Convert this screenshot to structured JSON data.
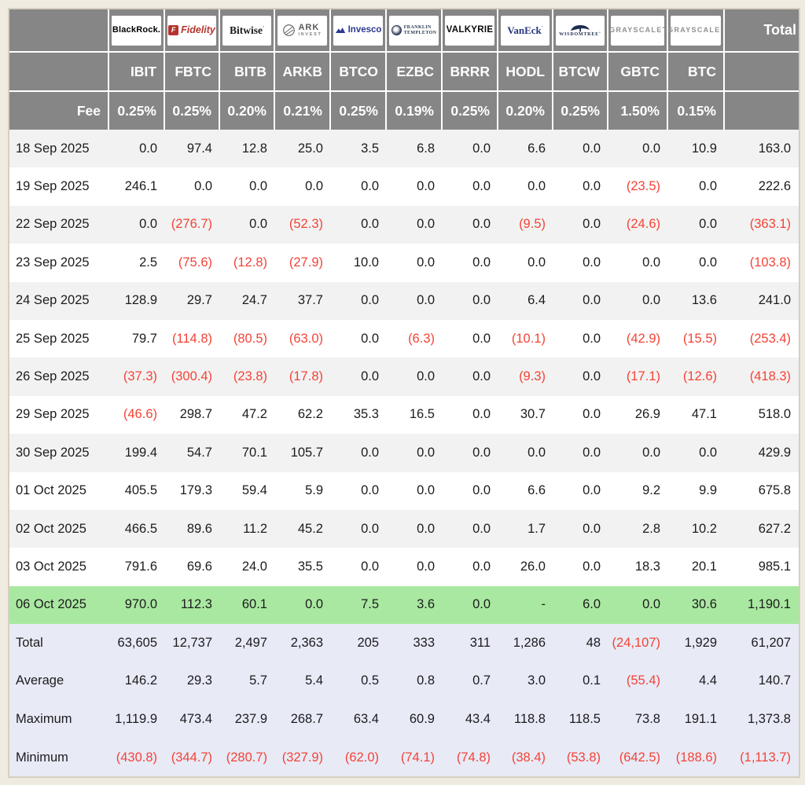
{
  "colors": {
    "page_bg": "#f0ebe1",
    "table_border": "#d6cfc0",
    "header_bg": "#868686",
    "header_text": "#ffffff",
    "row_stripe": "#f2f2f2",
    "row_white": "#ffffff",
    "highlight_green": "#a9e8a0",
    "summary_bg": "#e8eaf6",
    "negative_red": "#f44336",
    "text": "#1c1c1e"
  },
  "chart_data": {
    "type": "table",
    "fee_label": "Fee",
    "total_label": "Total",
    "providers": [
      {
        "style": "blackrock",
        "words": [
          "BlackRock"
        ]
      },
      {
        "style": "fidelity",
        "words": [
          "Fidelity"
        ]
      },
      {
        "style": "bitwise",
        "words": [
          "Bitwise"
        ]
      },
      {
        "style": "ark",
        "words": [
          "ARK",
          "INVEST"
        ]
      },
      {
        "style": "invesco",
        "words": [
          "Invesco"
        ]
      },
      {
        "style": "franklin",
        "words": [
          "FRANKLIN",
          "TEMPLETON"
        ]
      },
      {
        "style": "valkyrie",
        "words": [
          "VALKYRIE"
        ]
      },
      {
        "style": "vaneck",
        "words": [
          "VanEck"
        ]
      },
      {
        "style": "wisdomtree",
        "words": [
          "WISDOMTREE"
        ]
      },
      {
        "style": "grayscale",
        "words": [
          "GRAYSCALE"
        ]
      },
      {
        "style": "grayscale",
        "words": [
          "GRAYSCALE"
        ]
      }
    ],
    "tickers": [
      "IBIT",
      "FBTC",
      "BITB",
      "ARKB",
      "BTCO",
      "EZBC",
      "BRRR",
      "HODL",
      "BTCW",
      "GBTC",
      "BTC"
    ],
    "fees": [
      "0.25%",
      "0.25%",
      "0.20%",
      "0.21%",
      "0.25%",
      "0.19%",
      "0.25%",
      "0.20%",
      "0.25%",
      "1.50%",
      "0.15%"
    ],
    "rows": [
      {
        "date": "18 Sep 2025",
        "values": [
          "0.0",
          "97.4",
          "12.8",
          "25.0",
          "3.5",
          "6.8",
          "0.0",
          "6.6",
          "0.0",
          "0.0",
          "10.9"
        ],
        "total": "163.0",
        "highlight": false
      },
      {
        "date": "19 Sep 2025",
        "values": [
          "246.1",
          "0.0",
          "0.0",
          "0.0",
          "0.0",
          "0.0",
          "0.0",
          "0.0",
          "0.0",
          "(23.5)",
          "0.0"
        ],
        "total": "222.6",
        "highlight": false
      },
      {
        "date": "22 Sep 2025",
        "values": [
          "0.0",
          "(276.7)",
          "0.0",
          "(52.3)",
          "0.0",
          "0.0",
          "0.0",
          "(9.5)",
          "0.0",
          "(24.6)",
          "0.0"
        ],
        "total": "(363.1)",
        "highlight": false
      },
      {
        "date": "23 Sep 2025",
        "values": [
          "2.5",
          "(75.6)",
          "(12.8)",
          "(27.9)",
          "10.0",
          "0.0",
          "0.0",
          "0.0",
          "0.0",
          "0.0",
          "0.0"
        ],
        "total": "(103.8)",
        "highlight": false
      },
      {
        "date": "24 Sep 2025",
        "values": [
          "128.9",
          "29.7",
          "24.7",
          "37.7",
          "0.0",
          "0.0",
          "0.0",
          "6.4",
          "0.0",
          "0.0",
          "13.6"
        ],
        "total": "241.0",
        "highlight": false
      },
      {
        "date": "25 Sep 2025",
        "values": [
          "79.7",
          "(114.8)",
          "(80.5)",
          "(63.0)",
          "0.0",
          "(6.3)",
          "0.0",
          "(10.1)",
          "0.0",
          "(42.9)",
          "(15.5)"
        ],
        "total": "(253.4)",
        "highlight": false
      },
      {
        "date": "26 Sep 2025",
        "values": [
          "(37.3)",
          "(300.4)",
          "(23.8)",
          "(17.8)",
          "0.0",
          "0.0",
          "0.0",
          "(9.3)",
          "0.0",
          "(17.1)",
          "(12.6)"
        ],
        "total": "(418.3)",
        "highlight": false
      },
      {
        "date": "29 Sep 2025",
        "values": [
          "(46.6)",
          "298.7",
          "47.2",
          "62.2",
          "35.3",
          "16.5",
          "0.0",
          "30.7",
          "0.0",
          "26.9",
          "47.1"
        ],
        "total": "518.0",
        "highlight": false
      },
      {
        "date": "30 Sep 2025",
        "values": [
          "199.4",
          "54.7",
          "70.1",
          "105.7",
          "0.0",
          "0.0",
          "0.0",
          "0.0",
          "0.0",
          "0.0",
          "0.0"
        ],
        "total": "429.9",
        "highlight": false
      },
      {
        "date": "01 Oct 2025",
        "values": [
          "405.5",
          "179.3",
          "59.4",
          "5.9",
          "0.0",
          "0.0",
          "0.0",
          "6.6",
          "0.0",
          "9.2",
          "9.9"
        ],
        "total": "675.8",
        "highlight": false
      },
      {
        "date": "02 Oct 2025",
        "values": [
          "466.5",
          "89.6",
          "11.2",
          "45.2",
          "0.0",
          "0.0",
          "0.0",
          "1.7",
          "0.0",
          "2.8",
          "10.2"
        ],
        "total": "627.2",
        "highlight": false
      },
      {
        "date": "03 Oct 2025",
        "values": [
          "791.6",
          "69.6",
          "24.0",
          "35.5",
          "0.0",
          "0.0",
          "0.0",
          "26.0",
          "0.0",
          "18.3",
          "20.1"
        ],
        "total": "985.1",
        "highlight": false
      },
      {
        "date": "06 Oct 2025",
        "values": [
          "970.0",
          "112.3",
          "60.1",
          "0.0",
          "7.5",
          "3.6",
          "0.0",
          "-",
          "6.0",
          "0.0",
          "30.6"
        ],
        "total": "1,190.1",
        "highlight": true
      }
    ],
    "summary": [
      {
        "label": "Total",
        "values": [
          "63,605",
          "12,737",
          "2,497",
          "2,363",
          "205",
          "333",
          "311",
          "1,286",
          "48",
          "(24,107)",
          "1,929"
        ],
        "total": "61,207"
      },
      {
        "label": "Average",
        "values": [
          "146.2",
          "29.3",
          "5.7",
          "5.4",
          "0.5",
          "0.8",
          "0.7",
          "3.0",
          "0.1",
          "(55.4)",
          "4.4"
        ],
        "total": "140.7"
      },
      {
        "label": "Maximum",
        "values": [
          "1,119.9",
          "473.4",
          "237.9",
          "268.7",
          "63.4",
          "60.9",
          "43.4",
          "118.8",
          "118.5",
          "73.8",
          "191.1"
        ],
        "total": "1,373.8"
      },
      {
        "label": "Minimum",
        "values": [
          "(430.8)",
          "(344.7)",
          "(280.7)",
          "(327.9)",
          "(62.0)",
          "(74.1)",
          "(74.8)",
          "(38.4)",
          "(53.8)",
          "(642.5)",
          "(188.6)"
        ],
        "total": "(1,113.7)"
      }
    ]
  }
}
